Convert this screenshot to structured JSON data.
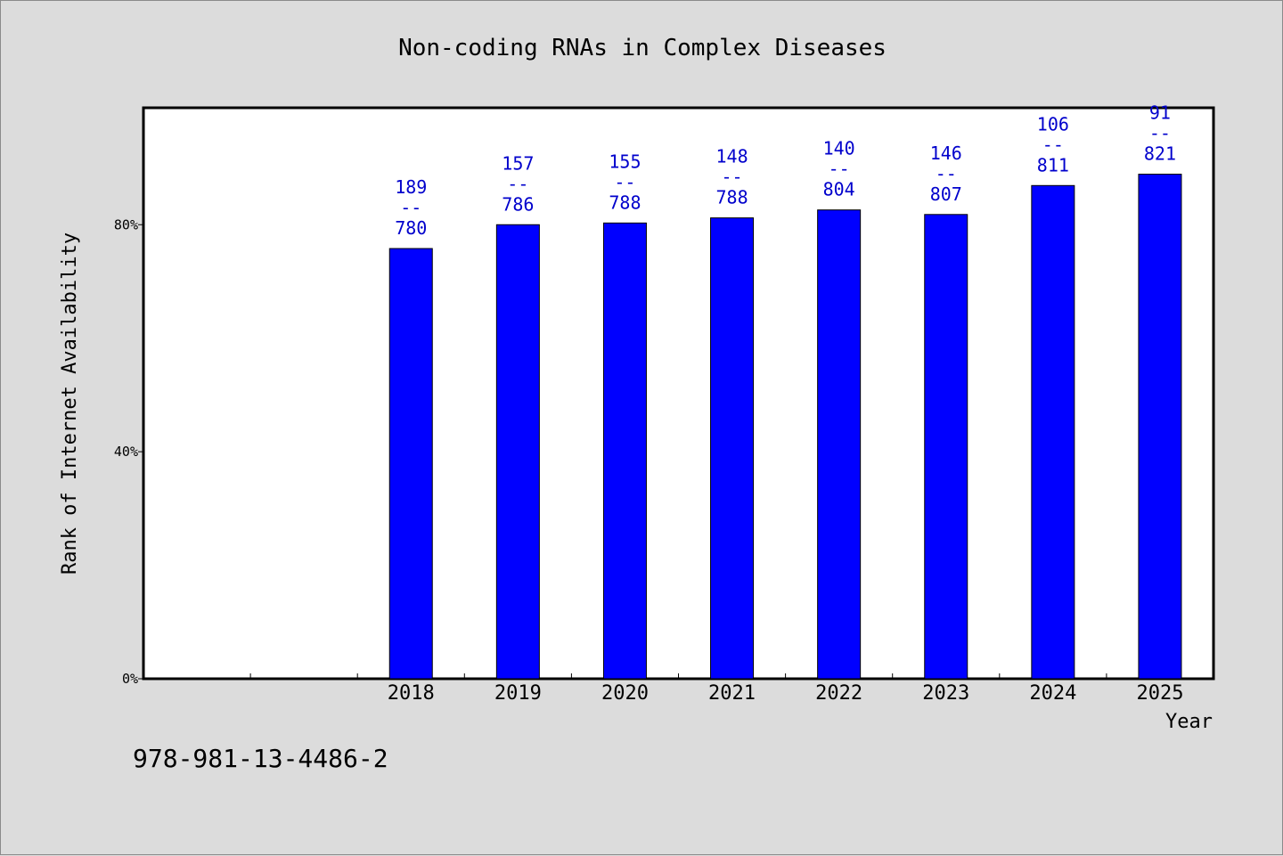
{
  "chart_data": {
    "type": "bar",
    "title": "Non-coding RNAs in Complex Diseases",
    "xlabel": "Year",
    "ylabel": "Rank of Internet Availability",
    "categories": [
      "",
      "",
      "2018",
      "2019",
      "2020",
      "2021",
      "2022",
      "2023",
      "2024",
      "2025"
    ],
    "values": [
      null,
      null,
      75.8,
      80.0,
      80.3,
      81.2,
      82.6,
      81.8,
      86.9,
      88.9
    ],
    "data_labels": [
      null,
      null,
      {
        "top": "189",
        "sep": "--",
        "bottom": "780"
      },
      {
        "top": "157",
        "sep": "--",
        "bottom": "786"
      },
      {
        "top": "155",
        "sep": "--",
        "bottom": "788"
      },
      {
        "top": "148",
        "sep": "--",
        "bottom": "788"
      },
      {
        "top": "140",
        "sep": "--",
        "bottom": "804"
      },
      {
        "top": "146",
        "sep": "--",
        "bottom": "807"
      },
      {
        "top": "106",
        "sep": "--",
        "bottom": "811"
      },
      {
        "top": "91",
        "sep": "--",
        "bottom": "821"
      }
    ],
    "yticks": [
      0,
      40,
      80
    ],
    "ytick_labels": [
      "0%",
      "40%",
      "80%"
    ],
    "ylim": [
      0,
      100.6
    ],
    "grid": false,
    "colors": {
      "bar": "#0000ff",
      "label": "#0000cc",
      "background": "#dcdcdc",
      "plot": "#ffffff"
    }
  },
  "footer": {
    "isbn": "978-981-13-4486-2"
  }
}
